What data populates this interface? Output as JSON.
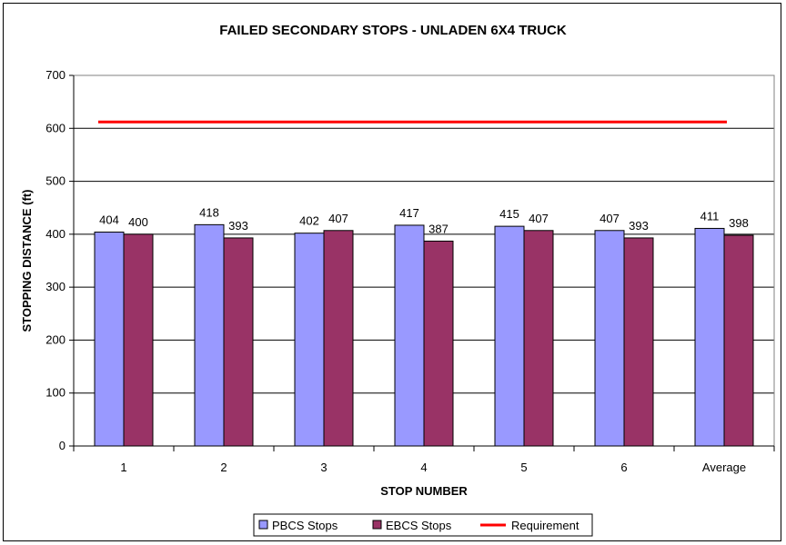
{
  "chart_data": {
    "type": "bar",
    "title": "FAILED SECONDARY STOPS - UNLADEN 6X4 TRUCK",
    "xlabel": "STOP NUMBER",
    "ylabel": "STOPPING DISTANCE (ft)",
    "ylim": [
      0,
      700
    ],
    "yticks": [
      "0",
      "100",
      "200",
      "300",
      "400",
      "500",
      "600",
      "700"
    ],
    "grid": true,
    "categories": [
      "1",
      "2",
      "3",
      "4",
      "5",
      "6",
      "Average"
    ],
    "series": [
      {
        "name": "PBCS Stops",
        "color": "#9999ff",
        "values": [
          404,
          418,
          402,
          417,
          415,
          407,
          411
        ]
      },
      {
        "name": "EBCS Stops",
        "color": "#993366",
        "values": [
          400,
          393,
          407,
          387,
          407,
          393,
          398
        ]
      }
    ],
    "line": {
      "name": "Requirement",
      "color": "#ff0000",
      "value": 612
    },
    "legend_placement": "bottom"
  }
}
